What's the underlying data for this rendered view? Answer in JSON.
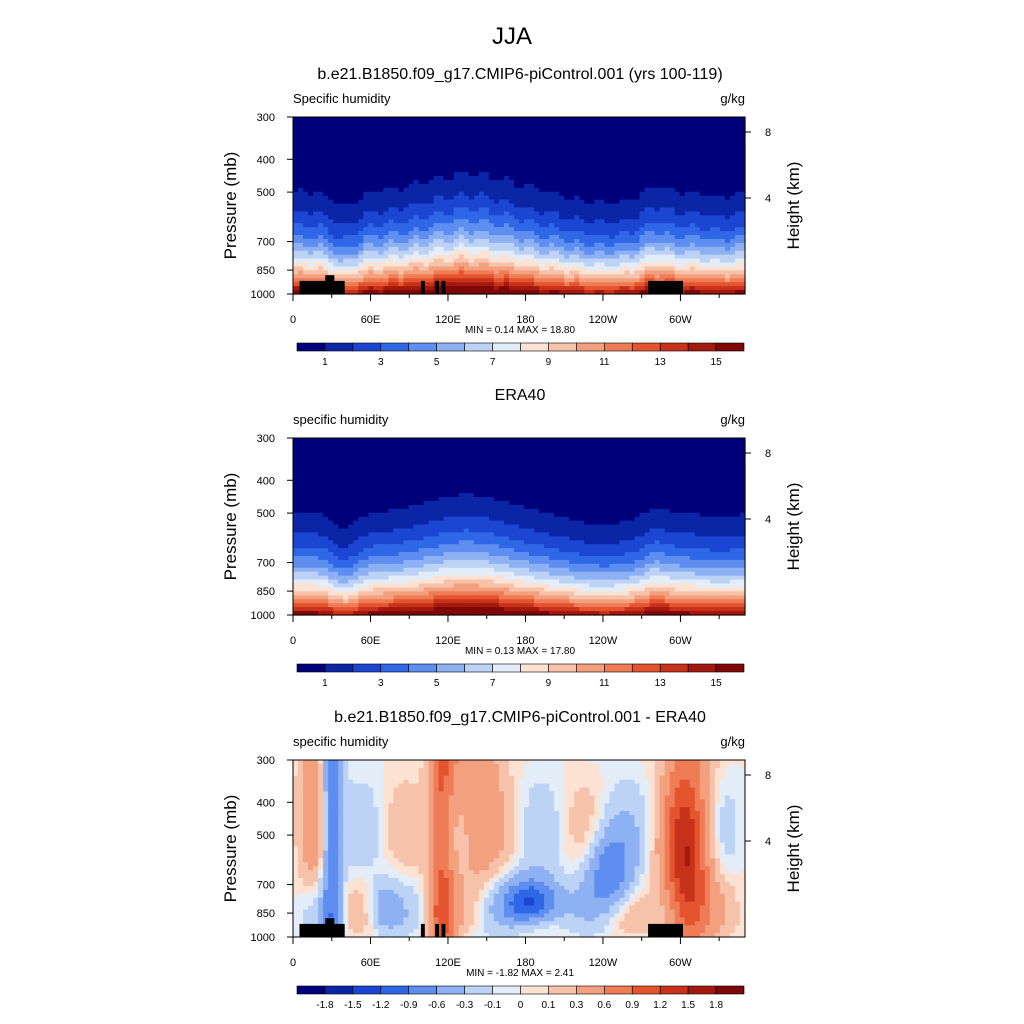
{
  "figure": {
    "title": "JJA"
  },
  "axes": {
    "pressure_label": "Pressure (mb)",
    "height_label": "Height (km)",
    "pressure_ticks": [
      "300",
      "400",
      "500",
      "700",
      "850",
      "1000"
    ],
    "height_ticks": [
      "8",
      "4"
    ],
    "lon_ticks": [
      "0",
      "60E",
      "120E",
      "180",
      "120W",
      "60W"
    ]
  },
  "colors": {
    "humidity_scale": [
      "#00007a",
      "#0a25a6",
      "#1b46d2",
      "#2f67e6",
      "#5d8ef0",
      "#8db1f2",
      "#bcd3f5",
      "#e3edf8",
      "#fbe2d3",
      "#f7c2aa",
      "#f3a07e",
      "#ee7c55",
      "#e4542f",
      "#c9321a",
      "#a3190e",
      "#7e0707"
    ],
    "diff_scale": [
      "#00007a",
      "#0a25a6",
      "#1b46d2",
      "#2f67e6",
      "#5d8ef0",
      "#8db1f2",
      "#bcd3f5",
      "#e3edf8",
      "#fbe2d3",
      "#f7c2aa",
      "#f3a07e",
      "#ee7c55",
      "#e4542f",
      "#c9321a",
      "#a3190e",
      "#7e0707"
    ],
    "topography": "#000000"
  },
  "chart_data": [
    {
      "type": "heatmap",
      "title": "b.e21.B1850.f09_g17.CMIP6-piControl.001 (yrs 100-119)",
      "left_label": "Specific humidity",
      "units": "g/kg",
      "min_max": "MIN =   0.14  MAX =  18.80",
      "colorbar_labels": [
        "1",
        "3",
        "5",
        "7",
        "9",
        "11",
        "13",
        "15"
      ],
      "ylim_mb": [
        1000,
        300
      ],
      "xlim_deg": [
        0,
        350
      ],
      "grid": false
    },
    {
      "type": "heatmap",
      "title": "ERA40",
      "left_label": "specific humidity",
      "units": "g/kg",
      "min_max": "MIN =   0.13  MAX =  17.80",
      "colorbar_labels": [
        "1",
        "3",
        "5",
        "7",
        "9",
        "11",
        "13",
        "15"
      ],
      "ylim_mb": [
        1000,
        300
      ],
      "xlim_deg": [
        0,
        350
      ],
      "grid": false
    },
    {
      "type": "heatmap",
      "title": "b.e21.B1850.f09_g17.CMIP6-piControl.001 - ERA40",
      "left_label": "specific humidity",
      "units": "g/kg",
      "min_max": "MIN =  -1.82  MAX =   2.41",
      "colorbar_labels": [
        "-1.8",
        "-1.5",
        "-1.2",
        "-0.9",
        "-0.6",
        "-0.3",
        "-0.1",
        "0",
        "0.1",
        "0.3",
        "0.6",
        "0.9",
        "1.2",
        "1.5",
        "1.8"
      ],
      "ylim_mb": [
        1000,
        300
      ],
      "xlim_deg": [
        0,
        350
      ],
      "grid": false
    }
  ]
}
